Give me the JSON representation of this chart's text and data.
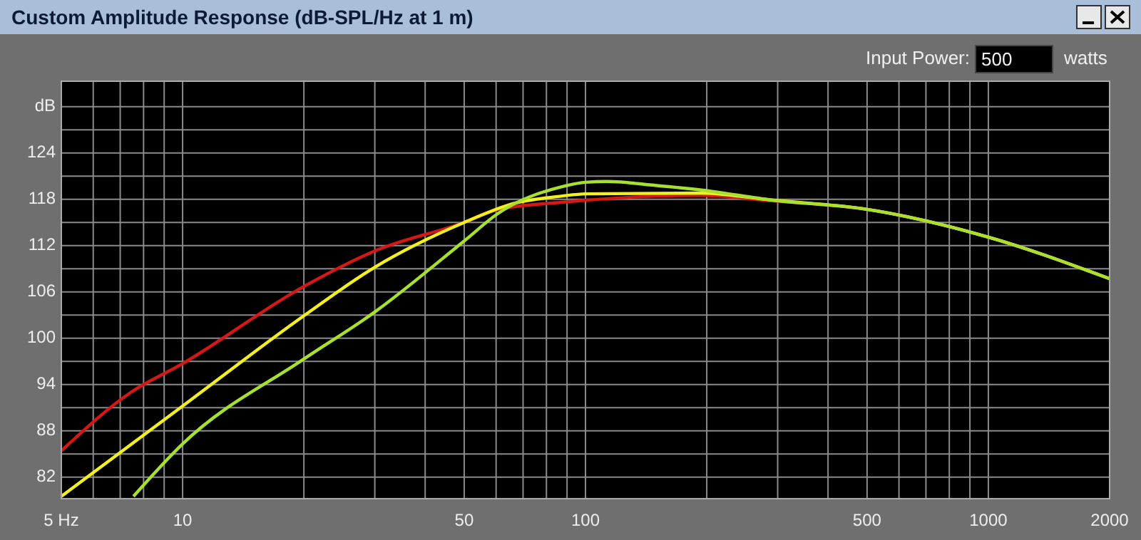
{
  "chart_data": {
    "type": "line",
    "title": "Custom Amplitude Response (dB-SPL/Hz at 1 m)",
    "annotations": [
      "Input Power:",
      "500",
      "watts"
    ],
    "log": "x",
    "grid": true,
    "marker": "none",
    "line_style": "solid",
    "xlim": [
      5,
      2000
    ],
    "xticks": [
      {
        "value": 5,
        "label": "5 Hz"
      },
      {
        "value": 6,
        "label": null
      },
      {
        "value": 7,
        "label": null
      },
      {
        "value": 8,
        "label": null
      },
      {
        "value": 9,
        "label": null
      },
      10,
      {
        "value": 20,
        "label": null
      },
      {
        "value": 30,
        "label": null
      },
      {
        "value": 40,
        "label": null
      },
      50,
      {
        "value": 60,
        "label": null
      },
      {
        "value": 70,
        "label": null
      },
      {
        "value": 80,
        "label": null
      },
      {
        "value": 90,
        "label": null
      },
      100,
      {
        "value": 200,
        "label": null
      },
      {
        "value": 300,
        "label": null
      },
      {
        "value": 400,
        "label": null
      },
      500,
      {
        "value": 600,
        "label": null
      },
      {
        "value": 700,
        "label": null
      },
      {
        "value": 800,
        "label": null
      },
      {
        "value": 900,
        "label": null
      },
      1000,
      2000
    ],
    "ylim": [
      79.2,
      133.3
    ],
    "yticks": [
      82,
      {
        "value": 85,
        "label": null
      },
      88,
      {
        "value": 91,
        "label": null
      },
      94,
      {
        "value": 97,
        "label": null
      },
      100,
      {
        "value": 103,
        "label": null
      },
      106,
      {
        "value": 109,
        "label": null
      },
      112,
      {
        "value": 115,
        "label": null
      },
      118,
      {
        "value": 121,
        "label": null
      },
      124,
      {
        "value": 127,
        "label": null
      },
      {
        "value": 130,
        "label": "dB"
      }
    ],
    "series": [
      {
        "color": "#d41818",
        "x": [
          5,
          7.45,
          10,
          20,
          30,
          50,
          60.8,
          87,
          149,
          194,
          290,
          500,
          1000,
          2000
        ],
        "values": [
          85.4,
          93.0,
          96.7,
          106.7,
          111.3,
          115.0,
          116.7,
          117.6,
          118.4,
          118.5,
          117.8,
          116.7,
          113.1,
          107.7
        ]
      },
      {
        "color": "#f2f020",
        "x": [
          5,
          10,
          20,
          30,
          50,
          66.8,
          87,
          100,
          194,
          290,
          500,
          1000,
          2000
        ],
        "values": [
          79.5,
          91.2,
          102.9,
          109.2,
          115.0,
          117.5,
          118.4,
          118.7,
          118.8,
          117.9,
          116.7,
          113.1,
          107.7
        ]
      },
      {
        "color": "#a8e030",
        "x": [
          7.55,
          10,
          20,
          30,
          50,
          60.8,
          87,
          100,
          113,
          149,
          194,
          290,
          500,
          1000,
          2000
        ],
        "values": [
          79.5,
          86.3,
          97.3,
          103.4,
          112.6,
          116.2,
          119.6,
          120.2,
          120.3,
          119.8,
          119.2,
          117.9,
          116.7,
          113.1,
          107.7
        ]
      }
    ]
  }
}
